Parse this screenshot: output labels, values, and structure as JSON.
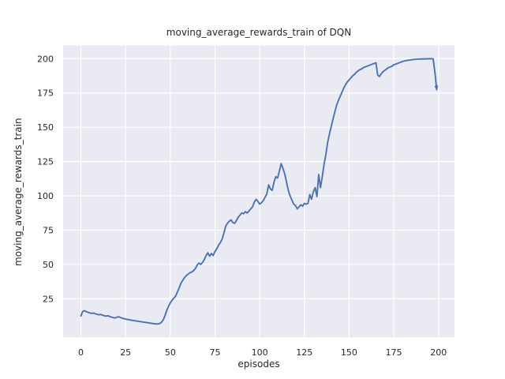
{
  "chart_data": {
    "type": "line",
    "title": "moving_average_rewards_train of DQN",
    "xlabel": "episodes",
    "ylabel": "moving_average_rewards_train",
    "x_ticks": [
      0,
      25,
      50,
      75,
      100,
      125,
      150,
      175,
      200
    ],
    "y_ticks": [
      25,
      50,
      75,
      100,
      125,
      150,
      175,
      200
    ],
    "xlim": [
      -9.95,
      208.95
    ],
    "ylim": [
      -3.1,
      209.6
    ],
    "grid": true,
    "legend": "none",
    "style": "seaborn-darkgrid",
    "line_color": "#4C72B0",
    "plot_bg_color": "#EAEAF2",
    "grid_color": "#FFFFFF",
    "text_color": "#262626",
    "end_marker": "arrowhead",
    "series": [
      {
        "name": "moving_average_rewards_train",
        "x_start": 0,
        "x_step": 1,
        "values": [
          12.5,
          15.8,
          16.3,
          15.6,
          15.1,
          14.7,
          14.3,
          14.6,
          14.1,
          13.7,
          13.3,
          13.6,
          13.1,
          12.7,
          12.3,
          12.6,
          12.1,
          11.7,
          11.3,
          11.0,
          11.5,
          11.9,
          11.4,
          10.9,
          10.5,
          10.2,
          9.9,
          9.7,
          9.4,
          9.2,
          9.0,
          8.8,
          8.6,
          8.4,
          8.2,
          8.0,
          7.8,
          7.6,
          7.4,
          7.2,
          7.0,
          6.8,
          6.7,
          6.6,
          6.9,
          7.8,
          9.5,
          12.5,
          16.5,
          19.5,
          22.0,
          24.0,
          25.5,
          27.0,
          30.0,
          33.0,
          36.5,
          38.5,
          40.5,
          42.0,
          43.0,
          44.0,
          44.5,
          45.5,
          47.0,
          49.5,
          51.0,
          50.0,
          51.5,
          53.5,
          56.5,
          58.5,
          56.0,
          58.0,
          56.5,
          59.5,
          61.5,
          64.0,
          66.0,
          68.5,
          73.0,
          78.0,
          80.0,
          81.5,
          82.5,
          80.5,
          80.0,
          82.0,
          84.5,
          86.0,
          87.5,
          87.0,
          88.5,
          87.5,
          89.0,
          90.5,
          92.0,
          95.5,
          97.5,
          96.0,
          94.0,
          95.0,
          96.5,
          99.0,
          101.5,
          108.0,
          105.0,
          104.0,
          110.0,
          114.0,
          113.0,
          118.0,
          123.5,
          120.0,
          116.0,
          110.0,
          104.0,
          100.0,
          97.0,
          94.0,
          93.0,
          90.5,
          92.0,
          93.5,
          92.5,
          94.5,
          94.0,
          94.5,
          101.0,
          97.5,
          103.0,
          106.0,
          99.5,
          115.5,
          106.0,
          114.0,
          123.0,
          130.0,
          139.0,
          145.0,
          150.5,
          156.0,
          161.0,
          166.0,
          169.5,
          172.5,
          175.5,
          178.5,
          181.0,
          183.0,
          184.5,
          186.0,
          187.5,
          188.5,
          190.0,
          191.0,
          192.0,
          192.5,
          193.5,
          194.0,
          194.5,
          195.0,
          195.5,
          196.0,
          196.5,
          197.0,
          188.0,
          187.0,
          189.0,
          190.5,
          191.5,
          192.5,
          193.5,
          194.0,
          194.5,
          195.5,
          196.0,
          196.5,
          197.0,
          197.5,
          198.0,
          198.3,
          198.6,
          198.8,
          199.0,
          199.2,
          199.4,
          199.5,
          199.6,
          199.7,
          199.7,
          199.8,
          199.8,
          199.8,
          199.9,
          199.9,
          199.9,
          199.9,
          190.0,
          177.5
        ]
      }
    ]
  }
}
